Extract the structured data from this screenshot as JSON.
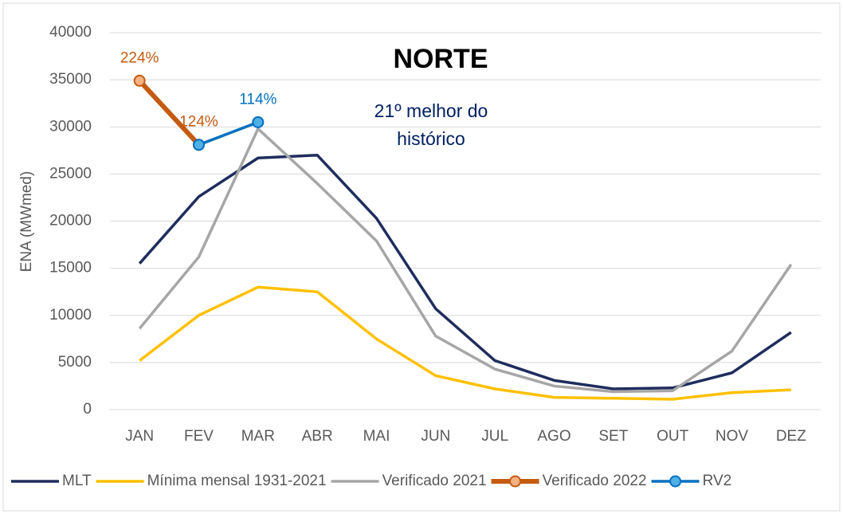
{
  "chart_data": {
    "type": "line",
    "title": "NORTE",
    "annotation": [
      "21º melhor do",
      "histórico"
    ],
    "y_label": "ENA (MWmed)",
    "categories": [
      "JAN",
      "FEV",
      "MAR",
      "ABR",
      "MAI",
      "JUN",
      "JUL",
      "AGO",
      "SET",
      "OUT",
      "NOV",
      "DEZ"
    ],
    "ylim": [
      0,
      40000
    ],
    "yticks": [
      0,
      5000,
      10000,
      15000,
      20000,
      25000,
      30000,
      35000,
      40000
    ],
    "grid": true,
    "legend": "bottom",
    "series": [
      {
        "name": "MLT",
        "color": "#1f2d5e",
        "values": [
          15500,
          22600,
          26700,
          27000,
          20300,
          10700,
          5200,
          3100,
          2200,
          2300,
          3900,
          8200
        ]
      },
      {
        "name": "Mínima mensal 1931-2021",
        "color": "#ffc000",
        "values": [
          5200,
          10000,
          13000,
          12500,
          7500,
          3600,
          2200,
          1300,
          1200,
          1100,
          1800,
          2100
        ]
      },
      {
        "name": "Verificado 2021",
        "color": "#a6a6a6",
        "values": [
          8600,
          16200,
          29800,
          24000,
          17900,
          7800,
          4300,
          2500,
          1900,
          2000,
          6200,
          15400
        ]
      },
      {
        "name": "Verificado 2022",
        "color": "#c55a11",
        "marker_fill": "#f4b183",
        "values": [
          34900,
          28100,
          null,
          null,
          null,
          null,
          null,
          null,
          null,
          null,
          null,
          null
        ],
        "point_labels": [
          "224%",
          "124%",
          null,
          null,
          null,
          null,
          null,
          null,
          null,
          null,
          null,
          null
        ]
      },
      {
        "name": "RV2",
        "color": "#0070c0",
        "marker_fill": "#4fb0e6",
        "values": [
          null,
          28100,
          30500,
          null,
          null,
          null,
          null,
          null,
          null,
          null,
          null,
          null
        ],
        "point_labels": [
          null,
          null,
          "114%",
          null,
          null,
          null,
          null,
          null,
          null,
          null,
          null,
          null
        ]
      }
    ]
  }
}
